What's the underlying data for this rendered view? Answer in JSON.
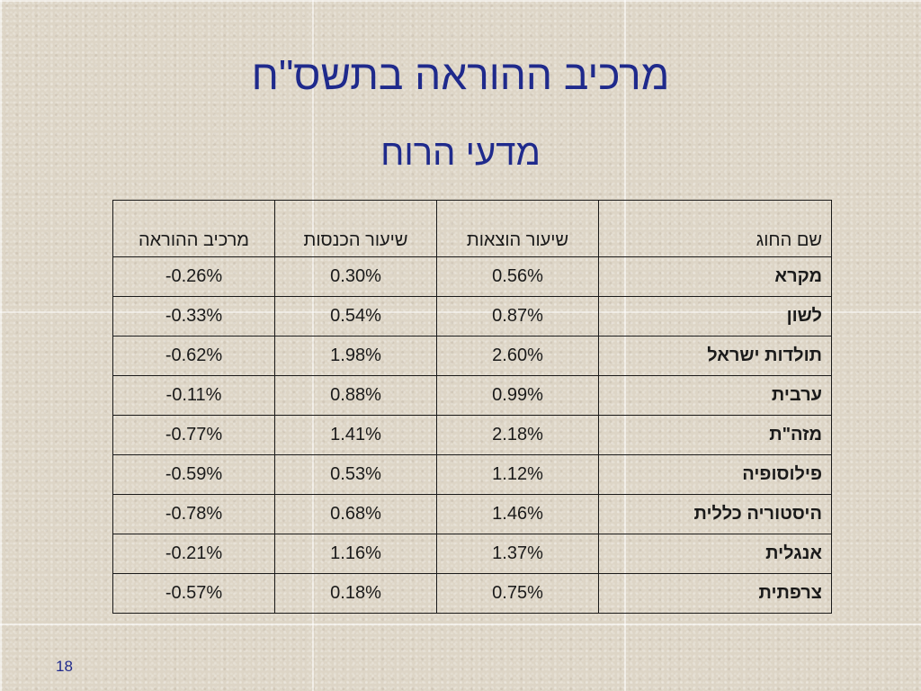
{
  "slide": {
    "title": "מרכיב ההוראה בתשס\"ח",
    "subtitle": "מדעי הרוח",
    "page_number": "18"
  },
  "table": {
    "headers": [
      "שם החוג",
      "שיעור הוצאות",
      "שיעור הכנסות",
      "מרכיב ההוראה"
    ],
    "rows": [
      [
        "מקרא",
        "0.56%",
        "0.30%",
        "-0.26%"
      ],
      [
        "לשון",
        "0.87%",
        "0.54%",
        "-0.33%"
      ],
      [
        "תולדות ישראל",
        "2.60%",
        "1.98%",
        "-0.62%"
      ],
      [
        "ערבית",
        "0.99%",
        "0.88%",
        "-0.11%"
      ],
      [
        "מזה\"ת",
        "2.18%",
        "1.41%",
        "-0.77%"
      ],
      [
        "פילוסופיה",
        "1.12%",
        "0.53%",
        "-0.59%"
      ],
      [
        "היסטוריה כללית",
        "1.46%",
        "0.68%",
        "-0.78%"
      ],
      [
        "אנגלית",
        "1.37%",
        "1.16%",
        "-0.21%"
      ],
      [
        "צרפתית",
        "0.75%",
        "0.18%",
        "-0.57%"
      ]
    ]
  },
  "colors": {
    "title": "#1f2a8c",
    "background": "#ddd5c6"
  }
}
